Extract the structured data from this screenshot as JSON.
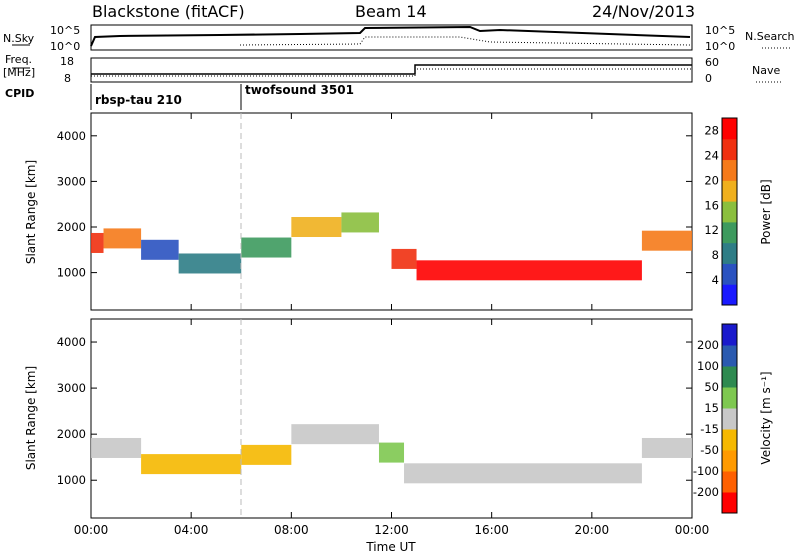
{
  "header": {
    "station": "Blackstone (fitACF)",
    "beam": "Beam 14",
    "date": "24/Nov/2013"
  },
  "summary_panels": {
    "nsky_label": "N.Sky",
    "nsky_ticks": [
      "10^5",
      "10^0"
    ],
    "nsearch_label": "N.Search",
    "nsearch_ticks": [
      "10^5",
      "10^0"
    ],
    "freq_label": "Freq.",
    "freq_unit": "[MHz]",
    "freq_ticks": [
      "18",
      "8"
    ],
    "nave_label": "Nave",
    "nave_ticks": [
      "60",
      "0"
    ],
    "cpid_label": "CPID",
    "cpid_segments": [
      {
        "name": "rbsp-tau 210",
        "start_hour": 0
      },
      {
        "name": "twofsound 3501",
        "start_hour": 6
      }
    ]
  },
  "chart_data": [
    {
      "type": "heatmap",
      "title": "",
      "xlabel": "Time UT",
      "ylabel": "Slant Range [km]",
      "x_ticks": [
        "00:00",
        "04:00",
        "08:00",
        "12:00",
        "16:00",
        "20:00",
        "00:00"
      ],
      "xlim_hours": [
        0,
        24
      ],
      "ylim": [
        180,
        4500
      ],
      "y_ticks": [
        1000,
        2000,
        3000,
        4000
      ],
      "colorbar": {
        "label": "Power [dB]",
        "range": [
          0,
          30
        ],
        "ticks": [
          4,
          8,
          12,
          16,
          20,
          24,
          28
        ],
        "colors": [
          "#1a1aff",
          "#2a52c0",
          "#2e7d86",
          "#3d9a5e",
          "#8bbf3e",
          "#f0b01e",
          "#f57a1a",
          "#f03010",
          "#ff0000"
        ]
      },
      "bands": [
        {
          "start_hour": 0.0,
          "end_hour": 0.5,
          "range_km": 1650,
          "value": 24
        },
        {
          "start_hour": 0.5,
          "end_hour": 2.0,
          "range_km": 1750,
          "value": 22
        },
        {
          "start_hour": 2.0,
          "end_hour": 3.5,
          "range_km": 1500,
          "value": 6
        },
        {
          "start_hour": 3.5,
          "end_hour": 6.0,
          "range_km": 1200,
          "value": 8
        },
        {
          "start_hour": 6.0,
          "end_hour": 8.0,
          "range_km": 1550,
          "value": 12
        },
        {
          "start_hour": 8.0,
          "end_hour": 10.0,
          "range_km": 2000,
          "value": 18
        },
        {
          "start_hour": 10.0,
          "end_hour": 11.5,
          "range_km": 2100,
          "value": 16
        },
        {
          "start_hour": 12.0,
          "end_hour": 13.0,
          "range_km": 1300,
          "value": 26
        },
        {
          "start_hour": 13.0,
          "end_hour": 22.0,
          "range_km": 1050,
          "value": 28
        },
        {
          "start_hour": 22.0,
          "end_hour": 24.0,
          "range_km": 1700,
          "value": 22
        }
      ]
    },
    {
      "type": "heatmap",
      "title": "",
      "xlabel": "Time UT",
      "ylabel": "Slant Range [km]",
      "x_ticks": [
        "00:00",
        "04:00",
        "08:00",
        "12:00",
        "16:00",
        "20:00",
        "00:00"
      ],
      "xlim_hours": [
        0,
        24
      ],
      "ylim": [
        180,
        4500
      ],
      "y_ticks": [
        1000,
        2000,
        3000,
        4000
      ],
      "colorbar": {
        "label": "Velocity [m s⁻¹]",
        "range": [
          -250,
          250
        ],
        "ticks": [
          -200,
          -100,
          -50,
          -15,
          15,
          50,
          100,
          200
        ],
        "colors": [
          "#ff0000",
          "#ff6000",
          "#ff9a00",
          "#f5b800",
          "#c8c8c8",
          "#7ec850",
          "#2e8a50",
          "#2a5ab0",
          "#1a1acc"
        ]
      },
      "bands": [
        {
          "start_hour": 0.0,
          "end_hour": 2.0,
          "range_km": 1700,
          "value": 0
        },
        {
          "start_hour": 2.0,
          "end_hour": 6.0,
          "range_km": 1350,
          "value": -60
        },
        {
          "start_hour": 6.0,
          "end_hour": 8.0,
          "range_km": 1550,
          "value": -40
        },
        {
          "start_hour": 8.0,
          "end_hour": 11.5,
          "range_km": 2000,
          "value": 0
        },
        {
          "start_hour": 11.5,
          "end_hour": 12.5,
          "range_km": 1600,
          "value": 40
        },
        {
          "start_hour": 12.5,
          "end_hour": 22.0,
          "range_km": 1150,
          "value": 0
        },
        {
          "start_hour": 22.0,
          "end_hour": 24.0,
          "range_km": 1700,
          "value": -20
        }
      ]
    }
  ]
}
